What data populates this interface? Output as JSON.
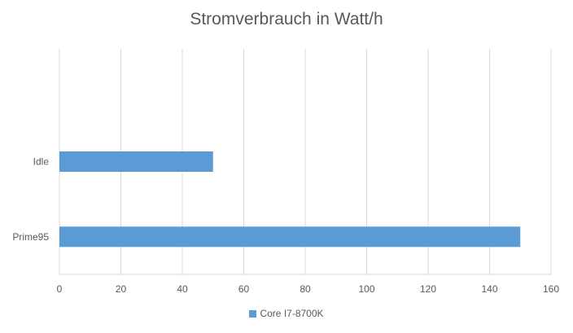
{
  "chart_data": {
    "type": "bar",
    "orientation": "horizontal",
    "title": "Stromverbrauch in Watt/h",
    "xlabel": "",
    "ylabel": "",
    "categories": [
      "Idle",
      "Prime95"
    ],
    "series": [
      {
        "name": "Core I7-8700K",
        "values": [
          50,
          150
        ],
        "color": "#5b9bd5"
      }
    ],
    "xlim": [
      0,
      160
    ],
    "xticks": [
      0,
      20,
      40,
      60,
      80,
      100,
      120,
      140,
      160
    ],
    "grid": true,
    "legend_position": "bottom"
  }
}
